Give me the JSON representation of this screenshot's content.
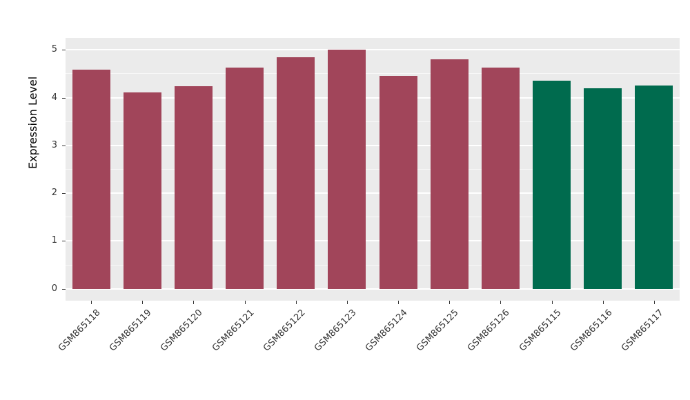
{
  "chart_data": {
    "type": "bar",
    "title": "",
    "xlabel": "",
    "ylabel": "Expression Level",
    "categories": [
      "GSM865118",
      "GSM865119",
      "GSM865120",
      "GSM865121",
      "GSM865122",
      "GSM865123",
      "GSM865124",
      "GSM865125",
      "GSM865126",
      "GSM865115",
      "GSM865116",
      "GSM865117"
    ],
    "values": [
      4.58,
      4.11,
      4.24,
      4.63,
      4.85,
      5.0,
      4.45,
      4.81,
      4.63,
      4.35,
      4.19,
      4.25
    ],
    "bar_colors": [
      "#A1455A",
      "#A1455A",
      "#A1455A",
      "#A1455A",
      "#A1455A",
      "#A1455A",
      "#A1455A",
      "#A1455A",
      "#A1455A",
      "#006B4E",
      "#006B4E",
      "#006B4E"
    ],
    "group_colors": {
      "maroon_group": "#A1455A",
      "green_group": "#006B4E"
    },
    "ylim": [
      0,
      5
    ],
    "yticks": [
      0,
      1,
      2,
      3,
      4,
      5
    ],
    "minor_tick_step": 0.5,
    "panel_background": "#EBEBEB",
    "grid_major_color": "#FFFFFF",
    "grid_minor_color": "#F7F7F7",
    "grid": "on",
    "legend": "none"
  }
}
